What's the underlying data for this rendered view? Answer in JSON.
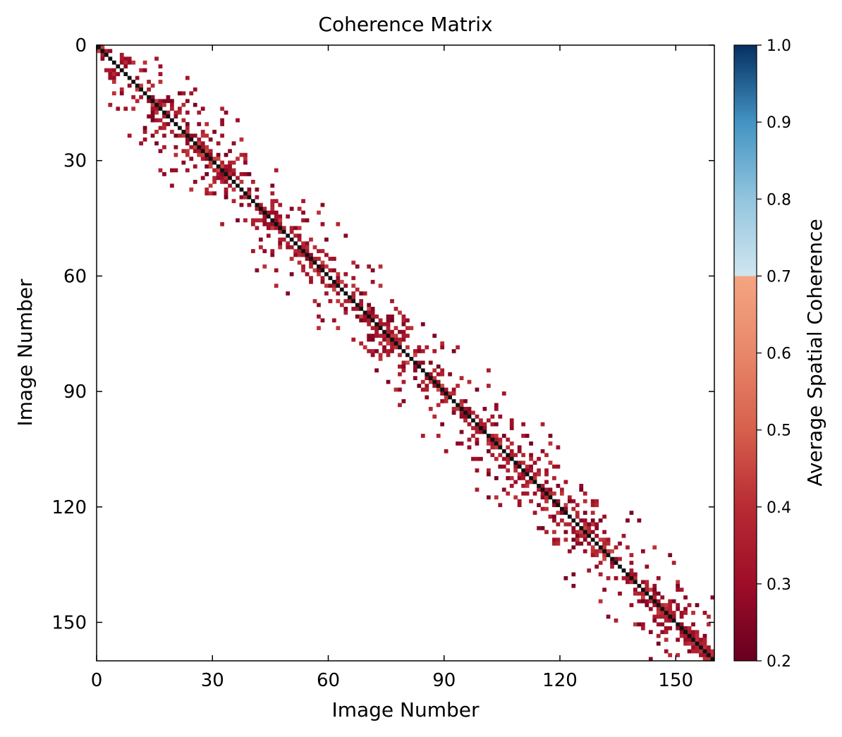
{
  "chart_data": {
    "type": "heatmap",
    "title": "Coherence Matrix",
    "xlabel": "Image Number",
    "ylabel": "Image Number",
    "xlim": [
      0,
      160
    ],
    "ylim": [
      160,
      0
    ],
    "xticks": [
      "0",
      "30",
      "60",
      "90",
      "120",
      "150"
    ],
    "yticks": [
      "0",
      "30",
      "60",
      "90",
      "120",
      "150"
    ],
    "xtick_values": [
      0,
      30,
      60,
      90,
      120,
      150
    ],
    "ytick_values": [
      0,
      30,
      60,
      90,
      120,
      150
    ],
    "n_images": 160,
    "diagonal_value": 1.0,
    "threshold": 0.2,
    "description_of_values": "Sparse band of low-coherence (0.2-0.45) pairs near the diagonal; diagonal equals 1.0",
    "colorbar": {
      "label": "Average Spatial Coherence",
      "range": [
        0.2,
        1.0
      ],
      "ticks": [
        "1.0",
        "0.9",
        "0.8",
        "0.7",
        "0.6",
        "0.5",
        "0.4",
        "0.3",
        "0.2"
      ],
      "tick_values": [
        1.0,
        0.9,
        0.8,
        0.7,
        0.6,
        0.5,
        0.4,
        0.3,
        0.2
      ],
      "colormap": "RdBu",
      "colors": {
        "low": "#67001f",
        "mid_low": "#b2182b",
        "mid": "#d6604d",
        "mid_high": "#f4a582",
        "light_blue": "#d1e5f0",
        "mid_blue": "#4393c3",
        "high": "#053061"
      }
    },
    "grid": false,
    "legend": "none"
  }
}
